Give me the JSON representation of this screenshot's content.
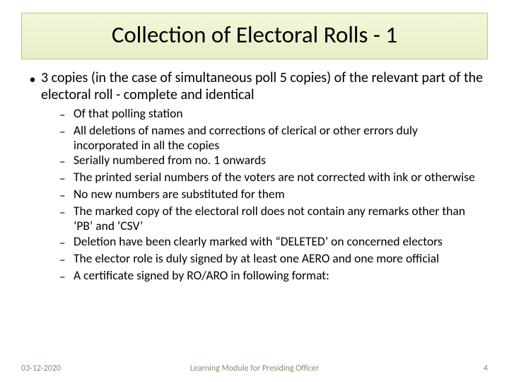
{
  "colors": {
    "title_bg_top": "#f2f7d9",
    "title_bg_bottom": "#e8eec8",
    "title_border": "#c0c95a",
    "text": "#000000",
    "footer_text": "#8a8a70",
    "background": "#ffffff"
  },
  "typography": {
    "title_fontsize": 33,
    "main_bullet_fontsize": 20,
    "sub_bullet_fontsize": 17.5,
    "footer_fontsize": 12,
    "font_family": "Calibri"
  },
  "title": "Collection of Electoral Rolls - 1",
  "main_bullet": "3 copies (in the case of simultaneous poll 5 copies) of the relevant part of the electoral roll - complete and identical",
  "sub_bullets": [
    "Of that polling station",
    "All deletions of names and corrections of clerical or other errors duly incorporated in all the copies",
    "Serially numbered from no. 1 onwards",
    "The printed serial numbers of the voters are not corrected with ink or otherwise",
    "No new numbers are substituted for them",
    "The marked copy of the electoral roll does not contain any remarks other than ‘PB’ and ‘CSV’",
    "Deletion have been clearly marked with “DELETED’ on concerned electors",
    "The elector role is duly signed by at least one AERO and one more official",
    "A certificate signed by RO/ARO in following format:"
  ],
  "footer": {
    "date": "03-12-2020",
    "center": "Learning Module for Presiding Officer",
    "page": "4"
  }
}
